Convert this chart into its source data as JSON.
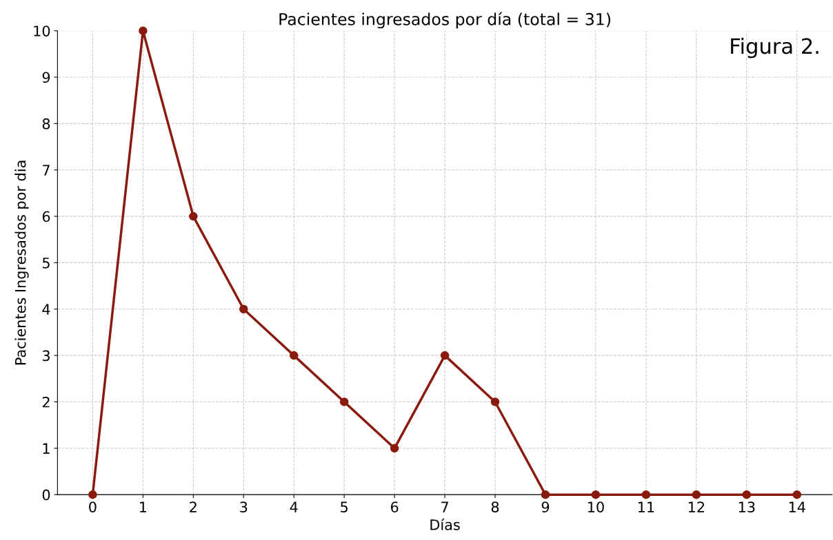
{
  "chart_data": {
    "type": "line",
    "title": "Pacientes ingresados por día (total = 31)",
    "xlabel": "Días",
    "ylabel": "Pacientes Ingresados por dia",
    "annotations": [
      "Figura 2."
    ],
    "x": [
      0,
      1,
      2,
      3,
      4,
      5,
      6,
      7,
      8,
      9,
      10,
      11,
      12,
      13,
      14
    ],
    "series": [
      {
        "color": "#8b1a0e",
        "values": [
          0,
          10,
          6,
          4,
          3,
          2,
          1,
          3,
          2,
          0,
          0,
          0,
          0,
          0,
          0
        ]
      }
    ],
    "xlim": [
      -0.7,
      14.7
    ],
    "ylim": [
      0,
      10
    ],
    "xticks": [
      0,
      1,
      2,
      3,
      4,
      5,
      6,
      7,
      8,
      9,
      10,
      11,
      12,
      13,
      14
    ],
    "yticks": [
      0,
      1,
      2,
      3,
      4,
      5,
      6,
      7,
      8,
      9,
      10
    ],
    "grid": true,
    "marker": "circle",
    "line_style": "solid"
  }
}
